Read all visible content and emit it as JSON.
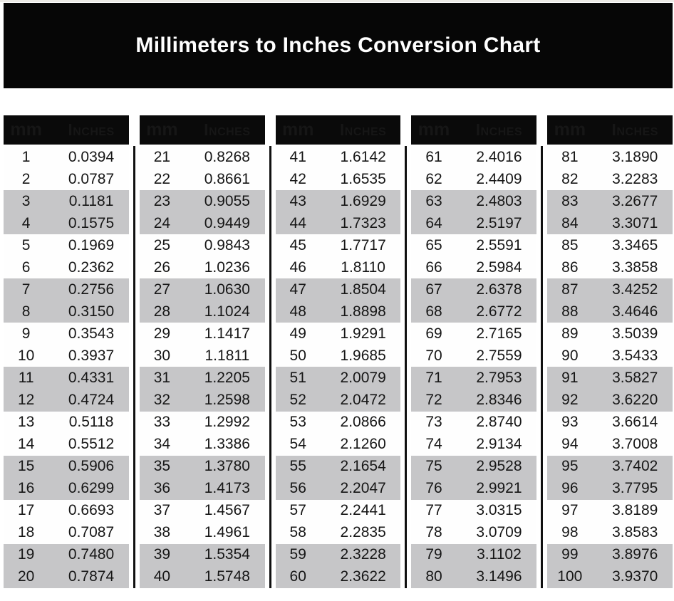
{
  "title": "Millimeters to Inches Conversion Chart",
  "colors": {
    "banner_bg": "#060606",
    "header_bg": "#0a0a0a",
    "stripe_gray": "#c6c6c8",
    "divider_black": "#101010",
    "text": "#161616",
    "header_text": "#ffffff"
  },
  "chart_data": {
    "type": "table",
    "title": "Millimeters to Inches Conversion Chart",
    "column_headers": [
      "mm",
      "Inches"
    ],
    "groups": [
      [
        [
          "1",
          "0.0394"
        ],
        [
          "2",
          "0.0787"
        ],
        [
          "3",
          "0.1181"
        ],
        [
          "4",
          "0.1575"
        ],
        [
          "5",
          "0.1969"
        ],
        [
          "6",
          "0.2362"
        ],
        [
          "7",
          "0.2756"
        ],
        [
          "8",
          "0.3150"
        ],
        [
          "9",
          "0.3543"
        ],
        [
          "10",
          "0.3937"
        ],
        [
          "11",
          "0.4331"
        ],
        [
          "12",
          "0.4724"
        ],
        [
          "13",
          "0.5118"
        ],
        [
          "14",
          "0.5512"
        ],
        [
          "15",
          "0.5906"
        ],
        [
          "16",
          "0.6299"
        ],
        [
          "17",
          "0.6693"
        ],
        [
          "18",
          "0.7087"
        ],
        [
          "19",
          "0.7480"
        ],
        [
          "20",
          "0.7874"
        ]
      ],
      [
        [
          "21",
          "0.8268"
        ],
        [
          "22",
          "0.8661"
        ],
        [
          "23",
          "0.9055"
        ],
        [
          "24",
          "0.9449"
        ],
        [
          "25",
          "0.9843"
        ],
        [
          "26",
          "1.0236"
        ],
        [
          "27",
          "1.0630"
        ],
        [
          "28",
          "1.1024"
        ],
        [
          "29",
          "1.1417"
        ],
        [
          "30",
          "1.1811"
        ],
        [
          "31",
          "1.2205"
        ],
        [
          "32",
          "1.2598"
        ],
        [
          "33",
          "1.2992"
        ],
        [
          "34",
          "1.3386"
        ],
        [
          "35",
          "1.3780"
        ],
        [
          "36",
          "1.4173"
        ],
        [
          "37",
          "1.4567"
        ],
        [
          "38",
          "1.4961"
        ],
        [
          "39",
          "1.5354"
        ],
        [
          "40",
          "1.5748"
        ]
      ],
      [
        [
          "41",
          "1.6142"
        ],
        [
          "42",
          "1.6535"
        ],
        [
          "43",
          "1.6929"
        ],
        [
          "44",
          "1.7323"
        ],
        [
          "45",
          "1.7717"
        ],
        [
          "46",
          "1.8110"
        ],
        [
          "47",
          "1.8504"
        ],
        [
          "48",
          "1.8898"
        ],
        [
          "49",
          "1.9291"
        ],
        [
          "50",
          "1.9685"
        ],
        [
          "51",
          "2.0079"
        ],
        [
          "52",
          "2.0472"
        ],
        [
          "53",
          "2.0866"
        ],
        [
          "54",
          "2.1260"
        ],
        [
          "55",
          "2.1654"
        ],
        [
          "56",
          "2.2047"
        ],
        [
          "57",
          "2.2441"
        ],
        [
          "58",
          "2.2835"
        ],
        [
          "59",
          "2.3228"
        ],
        [
          "60",
          "2.3622"
        ]
      ],
      [
        [
          "61",
          "2.4016"
        ],
        [
          "62",
          "2.4409"
        ],
        [
          "63",
          "2.4803"
        ],
        [
          "64",
          "2.5197"
        ],
        [
          "65",
          "2.5591"
        ],
        [
          "66",
          "2.5984"
        ],
        [
          "67",
          "2.6378"
        ],
        [
          "68",
          "2.6772"
        ],
        [
          "69",
          "2.7165"
        ],
        [
          "70",
          "2.7559"
        ],
        [
          "71",
          "2.7953"
        ],
        [
          "72",
          "2.8346"
        ],
        [
          "73",
          "2.8740"
        ],
        [
          "74",
          "2.9134"
        ],
        [
          "75",
          "2.9528"
        ],
        [
          "76",
          "2.9921"
        ],
        [
          "77",
          "3.0315"
        ],
        [
          "78",
          "3.0709"
        ],
        [
          "79",
          "3.1102"
        ],
        [
          "80",
          "3.1496"
        ]
      ],
      [
        [
          "81",
          "3.1890"
        ],
        [
          "82",
          "3.2283"
        ],
        [
          "83",
          "3.2677"
        ],
        [
          "84",
          "3.3071"
        ],
        [
          "85",
          "3.3465"
        ],
        [
          "86",
          "3.3858"
        ],
        [
          "87",
          "3.4252"
        ],
        [
          "88",
          "3.4646"
        ],
        [
          "89",
          "3.5039"
        ],
        [
          "90",
          "3.5433"
        ],
        [
          "91",
          "3.5827"
        ],
        [
          "92",
          "3.6220"
        ],
        [
          "93",
          "3.6614"
        ],
        [
          "94",
          "3.7008"
        ],
        [
          "95",
          "3.7402"
        ],
        [
          "96",
          "3.7795"
        ],
        [
          "97",
          "3.8189"
        ],
        [
          "98",
          "3.8583"
        ],
        [
          "99",
          "3.8976"
        ],
        [
          "100",
          "3.9370"
        ]
      ]
    ],
    "layout_hints": {
      "stripe_pattern": "rows shaded gray in alternating pairs (rows 3-4, 7-8, 11-12, 15-16, 19-20 of each column group)",
      "column_groups": 5,
      "rows_per_group": 20
    }
  }
}
